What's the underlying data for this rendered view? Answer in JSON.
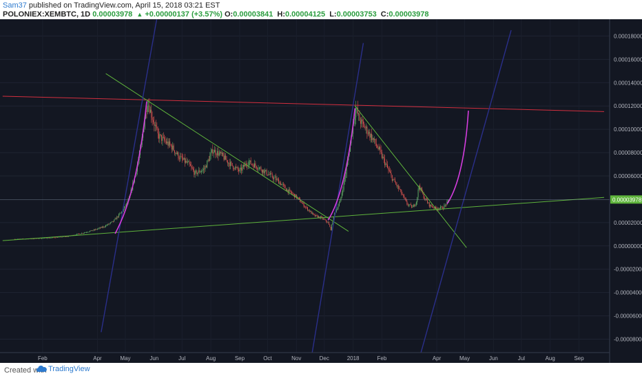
{
  "header": {
    "author": "Sam37",
    "published": "published on TradingView.com, April 15, 2018 03:21 EST",
    "symbol": "POLONIEX:XEMBTC, 1D",
    "last": "0.00003978",
    "change_arrow": "▲",
    "change": "+0.00000137 (+3.57%)",
    "open_label": "O:",
    "open": "0.00003841",
    "high_label": "H:",
    "high": "0.00004125",
    "low_label": "L:",
    "low": "0.00003753",
    "close_label": "C:",
    "close": "0.00003978"
  },
  "footer": {
    "created_with": "Created with",
    "brand": "TradingView"
  },
  "chart_data": {
    "type": "candlestick",
    "symbol": "POLONIEX:XEMBTC",
    "interval": "1D",
    "x_ticks": [
      "Feb",
      "Apr",
      "May",
      "Jun",
      "Jul",
      "Aug",
      "Sep",
      "Oct",
      "Nov",
      "Dec",
      "2018",
      "Feb",
      "Apr",
      "May",
      "Jun",
      "Jul",
      "Aug",
      "Sep"
    ],
    "y_ticks": [
      "0.00018000",
      "0.00016000",
      "0.00014000",
      "0.00012000",
      "0.00010000",
      "0.00008000",
      "0.00006000",
      "0.00002000",
      "0.00000000",
      "-0.00002000",
      "-0.00004000",
      "-0.00006000",
      "-0.00008000"
    ],
    "ylim": [
      -9.15e-05,
      0.0001944
    ],
    "last_price_label": "0.00003978",
    "last_price": 3.978e-05,
    "price_path": [
      [
        "2017-01-02",
        5.8e-06
      ],
      [
        "2017-01-20",
        6.2e-06
      ],
      [
        "2017-02-10",
        7e-06
      ],
      [
        "2017-02-28",
        8.2e-06
      ],
      [
        "2017-03-15",
        1.08e-05
      ],
      [
        "2017-03-28",
        1.35e-05
      ],
      [
        "2017-04-08",
        1.65e-05
      ],
      [
        "2017-04-18",
        2.1e-05
      ],
      [
        "2017-04-28",
        3e-05
      ],
      [
        "2017-05-05",
        4e-05
      ],
      [
        "2017-05-12",
        6.2e-05
      ],
      [
        "2017-05-18",
        8.5e-05
      ],
      [
        "2017-05-22",
        0.00011
      ],
      [
        "2017-05-25",
        0.000124
      ],
      [
        "2017-05-30",
        0.00011
      ],
      [
        "2017-06-05",
        9.5e-05
      ],
      [
        "2017-06-12",
        9e-05
      ],
      [
        "2017-06-20",
        8.5e-05
      ],
      [
        "2017-06-28",
        7.6e-05
      ],
      [
        "2017-07-08",
        7e-05
      ],
      [
        "2017-07-15",
        6.2e-05
      ],
      [
        "2017-07-25",
        6.6e-05
      ],
      [
        "2017-08-03",
        8.2e-05
      ],
      [
        "2017-08-12",
        7.8e-05
      ],
      [
        "2017-08-22",
        7e-05
      ],
      [
        "2017-09-01",
        6.4e-05
      ],
      [
        "2017-09-10",
        7.2e-05
      ],
      [
        "2017-09-20",
        6.8e-05
      ],
      [
        "2017-10-01",
        6.2e-05
      ],
      [
        "2017-10-12",
        5.6e-05
      ],
      [
        "2017-10-22",
        4.8e-05
      ],
      [
        "2017-11-01",
        4.2e-05
      ],
      [
        "2017-11-10",
        3.4e-05
      ],
      [
        "2017-11-20",
        2.6e-05
      ],
      [
        "2017-11-28",
        2.4e-05
      ],
      [
        "2017-12-05",
        2e-05
      ],
      [
        "2017-12-08",
        1.4e-05
      ],
      [
        "2017-12-12",
        2.8e-05
      ],
      [
        "2017-12-18",
        3.8e-05
      ],
      [
        "2017-12-24",
        6.2e-05
      ],
      [
        "2017-12-29",
        8.8e-05
      ],
      [
        "2018-01-02",
        0.00011
      ],
      [
        "2018-01-04",
        0.000118
      ],
      [
        "2018-01-08",
        0.000108
      ],
      [
        "2018-01-15",
        0.0001
      ],
      [
        "2018-01-22",
        9.2e-05
      ],
      [
        "2018-01-29",
        8.2e-05
      ],
      [
        "2018-02-05",
        7e-05
      ],
      [
        "2018-02-12",
        5.8e-05
      ],
      [
        "2018-02-20",
        4.8e-05
      ],
      [
        "2018-02-28",
        3.6e-05
      ],
      [
        "2018-03-06",
        3.3e-05
      ],
      [
        "2018-03-10",
        3.8e-05
      ],
      [
        "2018-03-13",
        5.2e-05
      ],
      [
        "2018-03-18",
        4.2e-05
      ],
      [
        "2018-03-24",
        3.5e-05
      ],
      [
        "2018-03-31",
        3.2e-05
      ],
      [
        "2018-04-08",
        3.3e-05
      ],
      [
        "2018-04-15",
        3.98e-05
      ]
    ],
    "drawings": [
      {
        "kind": "trendline",
        "color": "#d42f3f",
        "points": [
          [
            "2016-12-20",
            0.0001284
          ],
          [
            "2018-09-28",
            0.0001152
          ]
        ]
      },
      {
        "kind": "trendline",
        "color": "#5fb43c",
        "points": [
          [
            "2016-12-20",
            4.5e-06
          ],
          [
            "2018-09-28",
            4.16e-05
          ]
        ]
      },
      {
        "kind": "trendline",
        "color": "#5fb43c",
        "points": [
          [
            "2017-04-10",
            0.0001478
          ],
          [
            "2017-12-27",
            1.25e-05
          ]
        ]
      },
      {
        "kind": "trendline",
        "color": "#5fb43c",
        "points": [
          [
            "2018-01-03",
            0.00012
          ],
          [
            "2018-05-03",
            -1.5e-06
          ]
        ]
      },
      {
        "kind": "line",
        "color": "#2a2f8a",
        "points": [
          [
            "2017-04-05",
            -7.4e-05
          ],
          [
            "2017-06-05",
            0.0002
          ]
        ]
      },
      {
        "kind": "line",
        "color": "#2a2f8a",
        "points": [
          [
            "2017-11-18",
            -9.15e-05
          ],
          [
            "2018-01-12",
            0.000174
          ]
        ]
      },
      {
        "kind": "line",
        "color": "#2a2f8a",
        "points": [
          [
            "2018-03-15",
            -9.15e-05
          ],
          [
            "2018-06-20",
            0.000185
          ]
        ]
      },
      {
        "kind": "arc",
        "color": "#d63de0",
        "points": [
          [
            "2017-04-20",
            1.05e-05
          ],
          [
            "2017-05-06",
            3.4e-05
          ],
          [
            "2017-05-17",
            7e-05
          ],
          [
            "2017-05-24",
            0.000124
          ]
        ]
      },
      {
        "kind": "arc",
        "color": "#d63de0",
        "points": [
          [
            "2017-12-05",
            2.2e-05
          ],
          [
            "2017-12-18",
            3.8e-05
          ],
          [
            "2017-12-28",
            7.2e-05
          ],
          [
            "2018-01-03",
            0.000118
          ]
        ]
      },
      {
        "kind": "arc",
        "color": "#d63de0",
        "points": [
          [
            "2018-04-12",
            3.6e-05
          ],
          [
            "2018-04-24",
            5e-05
          ],
          [
            "2018-05-02",
            7.8e-05
          ],
          [
            "2018-05-05",
            0.000116
          ]
        ]
      }
    ],
    "grid": true,
    "legend": "none"
  }
}
